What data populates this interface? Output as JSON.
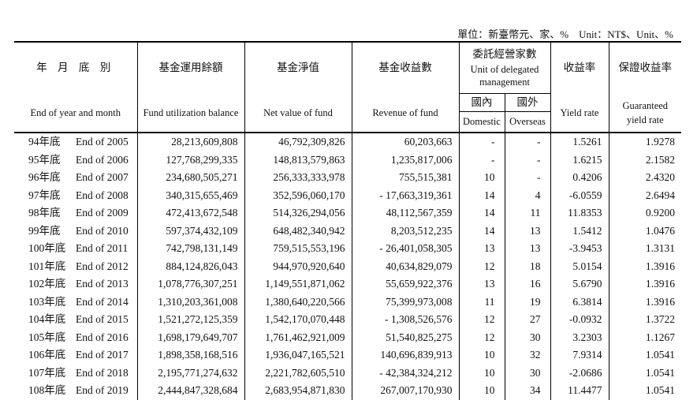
{
  "unit_note": "單位：新臺幣元、家、%　Unit：NT$、Unit、%",
  "headers": {
    "date_zh": "年 月 底 別",
    "date_en": "End of year and month",
    "fund_zh": "基金運用餘額",
    "fund_en": "Fund utilization balance",
    "net_zh": "基金淨值",
    "net_en": "Net value of fund",
    "rev_zh": "基金收益數",
    "rev_en": "Revenue of fund",
    "deleg_zh": "委託經營家數",
    "deleg_en": "Unit of delegated management",
    "dom_zh": "國內",
    "dom_en": "Domestic",
    "ovs_zh": "國外",
    "ovs_en": "Overseas",
    "yield_zh": "收益率",
    "yield_en": "Yield rate",
    "guar_zh": "保證收益率",
    "guar_en": "Guaranteed yield rate"
  },
  "rows": [
    {
      "roc": "94年底",
      "en": "End of 2005",
      "fund": "28,213,609,808",
      "net": "46,792,309,826",
      "rev": "60,203,663",
      "dom": "-",
      "ovs": "-",
      "yield": "1.5261",
      "guar": "1.9278"
    },
    {
      "roc": "95年底",
      "en": "End of 2006",
      "fund": "127,768,299,335",
      "net": "148,813,579,863",
      "rev": "1,235,817,006",
      "dom": "-",
      "ovs": "-",
      "yield": "1.6215",
      "guar": "2.1582"
    },
    {
      "roc": "96年底",
      "en": "End of 2007",
      "fund": "234,680,505,271",
      "net": "256,333,333,978",
      "rev": "755,515,381",
      "dom": "10",
      "ovs": "-",
      "yield": "0.4206",
      "guar": "2.4320"
    },
    {
      "roc": "97年底",
      "en": "End of 2008",
      "fund": "340,315,655,469",
      "net": "352,596,060,170",
      "rev": "- 17,663,319,361",
      "dom": "14",
      "ovs": "4",
      "yield": "-6.0559",
      "guar": "2.6494"
    },
    {
      "roc": "98年底",
      "en": "End of 2009",
      "fund": "472,413,672,548",
      "net": "514,326,294,056",
      "rev": "48,112,567,359",
      "dom": "14",
      "ovs": "11",
      "yield": "11.8353",
      "guar": "0.9200"
    },
    {
      "roc": "99年底",
      "en": "End of 2010",
      "fund": "597,374,432,109",
      "net": "648,482,340,942",
      "rev": "8,203,512,235",
      "dom": "14",
      "ovs": "13",
      "yield": "1.5412",
      "guar": "1.0476"
    },
    {
      "roc": "100年底",
      "en": "End of 2011",
      "fund": "742,798,131,149",
      "net": "759,515,553,196",
      "rev": "- 26,401,058,305",
      "dom": "13",
      "ovs": "13",
      "yield": "-3.9453",
      "guar": "1.3131"
    },
    {
      "roc": "101年底",
      "en": "End of 2012",
      "fund": "884,124,826,043",
      "net": "944,970,920,640",
      "rev": "40,634,829,079",
      "dom": "12",
      "ovs": "18",
      "yield": "5.0154",
      "guar": "1.3916"
    },
    {
      "roc": "102年底",
      "en": "End of 2013",
      "fund": "1,078,776,307,251",
      "net": "1,149,551,871,062",
      "rev": "55,659,922,376",
      "dom": "13",
      "ovs": "16",
      "yield": "5.6790",
      "guar": "1.3916"
    },
    {
      "roc": "103年底",
      "en": "End of 2014",
      "fund": "1,310,203,361,008",
      "net": "1,380,640,220,566",
      "rev": "75,399,973,008",
      "dom": "11",
      "ovs": "19",
      "yield": "6.3814",
      "guar": "1.3916"
    },
    {
      "roc": "104年底",
      "en": "End of 2015",
      "fund": "1,521,272,125,359",
      "net": "1,542,170,070,448",
      "rev": "- 1,308,526,576",
      "dom": "12",
      "ovs": "27",
      "yield": "-0.0932",
      "guar": "1.3722"
    },
    {
      "roc": "105年底",
      "en": "End of 2016",
      "fund": "1,698,179,649,707",
      "net": "1,761,462,921,009",
      "rev": "51,540,825,275",
      "dom": "12",
      "ovs": "30",
      "yield": "3.2303",
      "guar": "1.1267"
    },
    {
      "roc": "106年底",
      "en": "End of 2017",
      "fund": "1,898,358,168,516",
      "net": "1,936,047,165,521",
      "rev": "140,696,839,913",
      "dom": "10",
      "ovs": "32",
      "yield": "7.9314",
      "guar": "1.0541"
    },
    {
      "roc": "107年底",
      "en": "End of 2018",
      "fund": "2,195,771,274,632",
      "net": "2,221,782,605,510",
      "rev": "- 42,384,324,212",
      "dom": "10",
      "ovs": "30",
      "yield": "-2.0686",
      "guar": "1.0541"
    },
    {
      "roc": "108年底",
      "en": "End of 2019",
      "fund": "2,444,847,328,684",
      "net": "2,683,954,871,830",
      "rev": "267,007,170,930",
      "dom": "10",
      "ovs": "34",
      "yield": "11.4477",
      "guar": "1.0541"
    }
  ]
}
